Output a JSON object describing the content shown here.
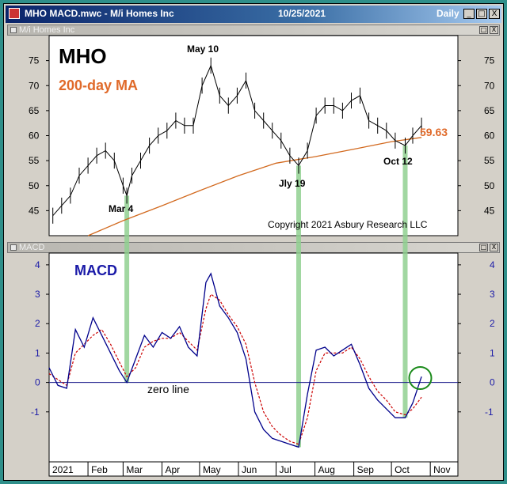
{
  "window": {
    "title": "MHO MACD.mwc - M/i Homes Inc",
    "date": "10/25/2021",
    "period": "Daily",
    "buttons": [
      "_",
      "□",
      "X"
    ]
  },
  "price_pane": {
    "header": "M/i Homes Inc",
    "buttons": [
      "□",
      "X"
    ]
  },
  "macd_pane": {
    "header": "MACD",
    "buttons": [
      "□",
      "X"
    ]
  },
  "colors": {
    "price_line": "#000000",
    "ma_line": "#d2691e",
    "ma_label": "#e06a2a",
    "macd_line": "#00008b",
    "signal_line": "#cc0000",
    "vertical_marker": "#90d090",
    "highlight_circle": "#1a8a1a",
    "macd_title": "#1a1aa8"
  },
  "chart_data": [
    {
      "type": "line",
      "title": "MHO",
      "subtitle": "200-day MA",
      "copyright": "Copyright 2021 Asbury Research LLC",
      "ylim": [
        40,
        80
      ],
      "yticks": [
        45,
        50,
        55,
        60,
        65,
        70,
        75
      ],
      "series": [
        {
          "role": "price",
          "x": [
            "2021-01-04",
            "2021-01-11",
            "2021-01-18",
            "2021-01-25",
            "2021-02-01",
            "2021-02-08",
            "2021-02-15",
            "2021-02-22",
            "2021-03-01",
            "2021-03-04",
            "2021-03-08",
            "2021-03-15",
            "2021-03-22",
            "2021-03-29",
            "2021-04-05",
            "2021-04-12",
            "2021-04-19",
            "2021-04-26",
            "2021-05-03",
            "2021-05-10",
            "2021-05-17",
            "2021-05-24",
            "2021-05-31",
            "2021-06-07",
            "2021-06-14",
            "2021-06-21",
            "2021-06-28",
            "2021-07-05",
            "2021-07-12",
            "2021-07-19",
            "2021-07-26",
            "2021-08-02",
            "2021-08-09",
            "2021-08-16",
            "2021-08-23",
            "2021-08-30",
            "2021-09-06",
            "2021-09-13",
            "2021-09-20",
            "2021-09-27",
            "2021-10-04",
            "2021-10-12",
            "2021-10-18",
            "2021-10-25"
          ],
          "values": [
            44,
            46,
            48,
            52,
            54,
            56,
            57,
            55,
            50,
            48,
            52,
            55,
            58,
            60,
            61,
            63,
            62,
            62,
            70,
            74,
            68,
            66,
            68,
            71,
            65,
            63,
            61,
            59,
            56,
            54,
            57,
            64,
            66,
            66,
            65,
            67,
            68,
            63,
            62,
            61,
            59,
            58,
            60,
            62
          ]
        },
        {
          "role": "200-day MA",
          "x": [
            "2021-01-04",
            "2021-02-01",
            "2021-03-01",
            "2021-04-01",
            "2021-05-01",
            "2021-06-01",
            "2021-07-01",
            "2021-08-01",
            "2021-09-01",
            "2021-10-01",
            "2021-10-25"
          ],
          "values": [
            37,
            40,
            43,
            46,
            49,
            52,
            54.5,
            55.8,
            57.3,
            58.8,
            59.63
          ]
        }
      ],
      "annotations": [
        {
          "text": "May 10",
          "x": "2021-05-10",
          "y": 76
        },
        {
          "text": "Mar 4",
          "x": "2021-03-04",
          "y": 44
        },
        {
          "text": "Jly 19",
          "x": "2021-07-19",
          "y": 50.5
        },
        {
          "text": "Oct 12",
          "x": "2021-10-12",
          "y": 55.5
        },
        {
          "text": "59.63",
          "x": "2021-10-25",
          "y": 59.63
        }
      ]
    },
    {
      "type": "line",
      "title": "MACD",
      "ylim": [
        -2.7,
        4.4
      ],
      "yticks": [
        -1,
        0,
        1,
        2,
        3,
        4
      ],
      "xticks": [
        {
          "label": "2021",
          "x": "2021-01-01"
        },
        {
          "label": "Feb",
          "x": "2021-02-01"
        },
        {
          "label": "Mar",
          "x": "2021-03-01"
        },
        {
          "label": "Apr",
          "x": "2021-04-01"
        },
        {
          "label": "May",
          "x": "2021-05-01"
        },
        {
          "label": "Jun",
          "x": "2021-06-01"
        },
        {
          "label": "Jul",
          "x": "2021-07-01"
        },
        {
          "label": "Aug",
          "x": "2021-08-01"
        },
        {
          "label": "Sep",
          "x": "2021-09-01"
        },
        {
          "label": "Oct",
          "x": "2021-10-01"
        },
        {
          "label": "Nov",
          "x": "2021-11-01"
        }
      ],
      "zero_line_label": "zero line",
      "series": [
        {
          "role": "MACD",
          "x": [
            "2021-01-01",
            "2021-01-08",
            "2021-01-15",
            "2021-01-22",
            "2021-01-29",
            "2021-02-05",
            "2021-02-12",
            "2021-02-19",
            "2021-02-26",
            "2021-03-04",
            "2021-03-11",
            "2021-03-18",
            "2021-03-25",
            "2021-04-01",
            "2021-04-08",
            "2021-04-15",
            "2021-04-22",
            "2021-04-29",
            "2021-05-06",
            "2021-05-10",
            "2021-05-17",
            "2021-05-24",
            "2021-05-31",
            "2021-06-07",
            "2021-06-14",
            "2021-06-21",
            "2021-06-28",
            "2021-07-05",
            "2021-07-12",
            "2021-07-19",
            "2021-07-26",
            "2021-08-02",
            "2021-08-09",
            "2021-08-16",
            "2021-08-23",
            "2021-08-30",
            "2021-09-06",
            "2021-09-13",
            "2021-09-20",
            "2021-09-27",
            "2021-10-04",
            "2021-10-12",
            "2021-10-18",
            "2021-10-25"
          ],
          "values": [
            0.5,
            -0.1,
            -0.2,
            1.8,
            1.2,
            2.2,
            1.6,
            1.0,
            0.4,
            0.0,
            0.8,
            1.6,
            1.2,
            1.7,
            1.5,
            1.9,
            1.2,
            0.9,
            3.4,
            3.7,
            2.6,
            2.2,
            1.7,
            0.8,
            -1.0,
            -1.6,
            -1.9,
            -2.0,
            -2.1,
            -2.2,
            -0.4,
            1.1,
            1.2,
            0.9,
            1.1,
            1.3,
            0.6,
            -0.2,
            -0.6,
            -0.9,
            -1.2,
            -1.2,
            -0.7,
            0.2
          ]
        },
        {
          "role": "signal",
          "x": [
            "2021-01-01",
            "2021-01-08",
            "2021-01-15",
            "2021-01-22",
            "2021-01-29",
            "2021-02-05",
            "2021-02-12",
            "2021-02-19",
            "2021-02-26",
            "2021-03-04",
            "2021-03-11",
            "2021-03-18",
            "2021-03-25",
            "2021-04-01",
            "2021-04-08",
            "2021-04-15",
            "2021-04-22",
            "2021-04-29",
            "2021-05-06",
            "2021-05-10",
            "2021-05-17",
            "2021-05-24",
            "2021-05-31",
            "2021-06-07",
            "2021-06-14",
            "2021-06-21",
            "2021-06-28",
            "2021-07-05",
            "2021-07-12",
            "2021-07-19",
            "2021-07-26",
            "2021-08-02",
            "2021-08-09",
            "2021-08-16",
            "2021-08-23",
            "2021-08-30",
            "2021-09-06",
            "2021-09-13",
            "2021-09-20",
            "2021-09-27",
            "2021-10-04",
            "2021-10-12",
            "2021-10-18",
            "2021-10-25"
          ],
          "values": [
            0.3,
            0.1,
            -0.1,
            1.0,
            1.3,
            1.6,
            1.8,
            1.3,
            0.7,
            0.2,
            0.5,
            1.2,
            1.4,
            1.5,
            1.5,
            1.7,
            1.4,
            1.1,
            2.5,
            3.0,
            2.8,
            2.3,
            1.9,
            1.3,
            0.0,
            -1.0,
            -1.5,
            -1.8,
            -2.0,
            -2.1,
            -1.2,
            0.4,
            1.0,
            1.0,
            1.0,
            1.2,
            0.8,
            0.2,
            -0.3,
            -0.6,
            -1.0,
            -1.1,
            -0.9,
            -0.5
          ]
        }
      ],
      "vertical_markers": [
        "2021-03-04",
        "2021-07-19",
        "2021-10-12"
      ],
      "highlight_circle": {
        "x": "2021-10-24",
        "y": 0.15
      }
    }
  ]
}
